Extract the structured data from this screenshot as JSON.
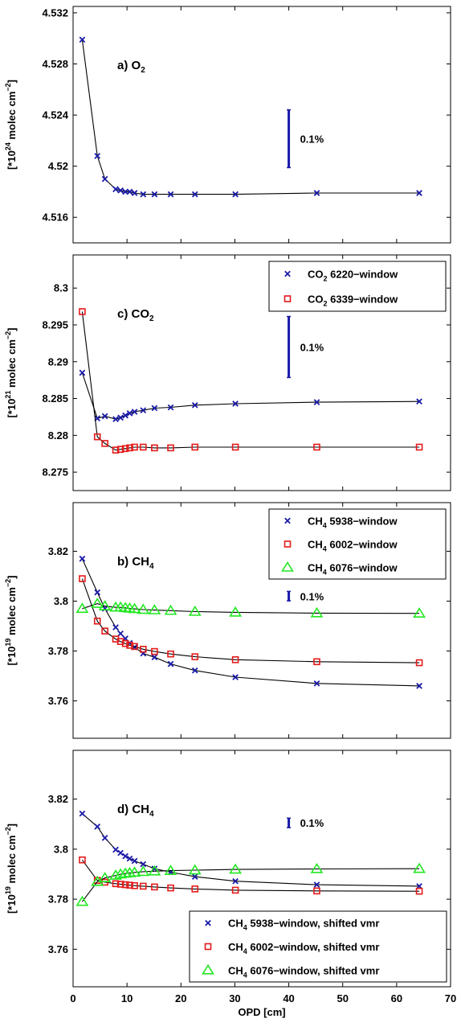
{
  "chart_data": [
    {
      "type": "scatter",
      "title": "",
      "annotation": {
        "text": "a) O",
        "sub": "2"
      },
      "ylabel": {
        "pre": "[*10",
        "sup": "24",
        "mid": " molec cm",
        "sup2": "−2",
        "post": "]"
      },
      "xlim": [
        0,
        70
      ],
      "ylim": [
        4.514,
        4.5325
      ],
      "yticks": [
        "4.516",
        "4.52",
        "4.524",
        "4.528",
        "4.532"
      ],
      "scale_bar": {
        "x": 40,
        "y_center": 4.52215,
        "label": "0.1%"
      },
      "legend": [],
      "series": [
        {
          "marker": "x",
          "color": "#1a1aa8",
          "x": [
            1.7,
            4.5,
            5.9,
            7.9,
            8.8,
            9.7,
            10.5,
            11.4,
            13.0,
            15.1,
            18.1,
            22.6,
            30.1,
            45.2,
            64.2
          ],
          "y": [
            4.5299,
            4.5208,
            4.519,
            4.5182,
            4.5181,
            4.518,
            4.518,
            4.5179,
            4.5178,
            4.5178,
            4.5178,
            4.5178,
            4.5178,
            4.5179,
            4.5179
          ]
        }
      ]
    },
    {
      "type": "scatter",
      "title": "",
      "annotation": {
        "text": "c) CO",
        "sub": "2"
      },
      "ylabel": {
        "pre": "[*10",
        "sup": "21",
        "mid": " molec cm",
        "sup2": "−2",
        "post": "]"
      },
      "xlim": [
        0,
        70
      ],
      "ylim": [
        8.2725,
        8.3045
      ],
      "yticks": [
        "8.275",
        "8.28",
        "8.285",
        "8.29",
        "8.295",
        "8.3"
      ],
      "scale_bar": {
        "x": 40,
        "y_center": 8.292,
        "label": "0.1%"
      },
      "legend": [
        {
          "marker": "x",
          "color": "#1a1aa8",
          "pre": "CO",
          "sub": "2",
          "post": " 6220−window"
        },
        {
          "marker": "square",
          "color": "#e31a1a",
          "pre": "CO",
          "sub": "2",
          "post": " 6339−window"
        }
      ],
      "series": [
        {
          "marker": "x",
          "color": "#1a1aa8",
          "x": [
            1.7,
            4.5,
            5.9,
            7.9,
            8.8,
            9.7,
            10.5,
            11.4,
            13.0,
            15.1,
            18.1,
            22.6,
            30.1,
            45.2,
            64.2
          ],
          "y": [
            8.2885,
            8.2823,
            8.2826,
            8.2822,
            8.2824,
            8.2827,
            8.283,
            8.2832,
            8.2834,
            8.2837,
            8.2838,
            8.2841,
            8.2843,
            8.2845,
            8.2846
          ]
        },
        {
          "marker": "square",
          "color": "#e31a1a",
          "x": [
            1.7,
            4.5,
            5.9,
            7.9,
            8.8,
            9.7,
            10.5,
            11.4,
            13.0,
            15.1,
            18.1,
            22.6,
            30.1,
            45.2,
            64.2
          ],
          "y": [
            8.2968,
            8.2798,
            8.2789,
            8.278,
            8.2781,
            8.2782,
            8.2783,
            8.2784,
            8.2784,
            8.2783,
            8.2783,
            8.2784,
            8.2784,
            8.2784,
            8.2784
          ]
        }
      ]
    },
    {
      "type": "scatter",
      "title": "",
      "annotation": {
        "text": "b) CH",
        "sub": "4"
      },
      "ylabel": {
        "pre": "[*10",
        "sup": "19",
        "mid": " molec cm",
        "sup2": "−2",
        "post": "]"
      },
      "xlim": [
        0,
        70
      ],
      "ylim": [
        3.745,
        3.8395
      ],
      "yticks": [
        "3.76",
        "3.78",
        "3.8",
        "3.82"
      ],
      "scale_bar": {
        "x": 40,
        "y_center": 3.802,
        "label": "0.1%"
      },
      "legend": [
        {
          "marker": "x",
          "color": "#1a1aa8",
          "pre": "CH",
          "sub": "4",
          "post": " 5938−window"
        },
        {
          "marker": "square",
          "color": "#e31a1a",
          "pre": "CH",
          "sub": "4",
          "post": " 6002−window"
        },
        {
          "marker": "triangle",
          "color": "#22e822",
          "pre": "CH",
          "sub": "4",
          "post": " 6076−window"
        }
      ],
      "series": [
        {
          "marker": "x",
          "color": "#1a1aa8",
          "x": [
            1.7,
            4.5,
            5.9,
            7.9,
            8.8,
            9.7,
            10.5,
            11.4,
            13.0,
            15.1,
            18.1,
            22.6,
            30.1,
            45.2,
            64.2
          ],
          "y": [
            3.817,
            3.8035,
            3.797,
            3.7895,
            3.787,
            3.785,
            3.7832,
            3.7815,
            3.779,
            3.7775,
            3.7748,
            3.7722,
            3.7695,
            3.767,
            3.766
          ]
        },
        {
          "marker": "square",
          "color": "#e31a1a",
          "x": [
            1.7,
            4.5,
            5.9,
            7.9,
            8.8,
            9.7,
            10.5,
            11.4,
            13.0,
            15.1,
            18.1,
            22.6,
            30.1,
            45.2,
            64.2
          ],
          "y": [
            3.809,
            3.792,
            3.788,
            3.7848,
            3.7838,
            3.783,
            3.7823,
            3.7818,
            3.7807,
            3.7798,
            3.7788,
            3.7777,
            3.7765,
            3.7757,
            3.7753
          ]
        },
        {
          "marker": "triangle",
          "color": "#22e822",
          "x": [
            1.7,
            4.5,
            5.9,
            7.9,
            8.8,
            9.7,
            10.5,
            11.4,
            13.0,
            15.1,
            18.1,
            22.6,
            30.1,
            45.2,
            64.2
          ],
          "y": [
            3.797,
            3.799,
            3.798,
            3.7975,
            3.7975,
            3.7973,
            3.7971,
            3.7969,
            3.7966,
            3.7964,
            3.7962,
            3.7958,
            3.7955,
            3.7952,
            3.7951
          ]
        }
      ]
    },
    {
      "type": "scatter",
      "title": "",
      "annotation": {
        "text": "d) CH",
        "sub": "4"
      },
      "ylabel": {
        "pre": "[*10",
        "sup": "19",
        "mid": " molec cm",
        "sup2": "−2",
        "post": "]"
      },
      "xlabel": "OPD [cm]",
      "xlim": [
        0,
        70
      ],
      "xticks": [
        "0",
        "10",
        "20",
        "30",
        "40",
        "50",
        "60",
        "70"
      ],
      "ylim": [
        3.745,
        3.8395
      ],
      "yticks": [
        "3.76",
        "3.78",
        "3.8",
        "3.82"
      ],
      "scale_bar": {
        "x": 40,
        "y_center": 3.8105,
        "label": "0.1%"
      },
      "legend": [
        {
          "marker": "x",
          "color": "#1a1aa8",
          "pre": "CH",
          "sub": "4",
          "post": " 5938−window, shifted vmr"
        },
        {
          "marker": "square",
          "color": "#e31a1a",
          "pre": "CH",
          "sub": "4",
          "post": " 6002−window, shifted vmr"
        },
        {
          "marker": "triangle",
          "color": "#22e822",
          "pre": "CH",
          "sub": "4",
          "post": " 6076−window, shifted vmr"
        }
      ],
      "series": [
        {
          "marker": "x",
          "color": "#1a1aa8",
          "x": [
            1.7,
            4.5,
            5.9,
            7.9,
            8.8,
            9.7,
            10.5,
            11.4,
            13.0,
            15.1,
            18.1,
            22.6,
            30.1,
            45.2,
            64.2
          ],
          "y": [
            3.8142,
            3.809,
            3.8045,
            3.7998,
            3.7985,
            3.7972,
            3.7962,
            3.7953,
            3.794,
            3.7922,
            3.7908,
            3.789,
            3.7872,
            3.7858,
            3.7852
          ]
        },
        {
          "marker": "square",
          "color": "#e31a1a",
          "x": [
            1.7,
            4.5,
            5.9,
            7.9,
            8.8,
            9.7,
            10.5,
            11.4,
            13.0,
            15.1,
            18.1,
            22.6,
            30.1,
            45.2,
            64.2
          ],
          "y": [
            3.7957,
            3.7875,
            3.7868,
            3.7862,
            3.786,
            3.7858,
            3.7856,
            3.7854,
            3.7852,
            3.7849,
            3.7845,
            3.7841,
            3.7836,
            3.7833,
            3.7832
          ]
        },
        {
          "marker": "triangle",
          "color": "#22e822",
          "x": [
            1.7,
            4.5,
            5.9,
            7.9,
            8.8,
            9.7,
            10.5,
            11.4,
            13.0,
            15.1,
            18.1,
            22.6,
            30.1,
            45.2,
            64.2
          ],
          "y": [
            3.779,
            3.787,
            3.7885,
            3.7895,
            3.79,
            3.7903,
            3.7905,
            3.7907,
            3.791,
            3.7912,
            3.7914,
            3.7916,
            3.7919,
            3.7921,
            3.7922
          ]
        }
      ]
    }
  ]
}
